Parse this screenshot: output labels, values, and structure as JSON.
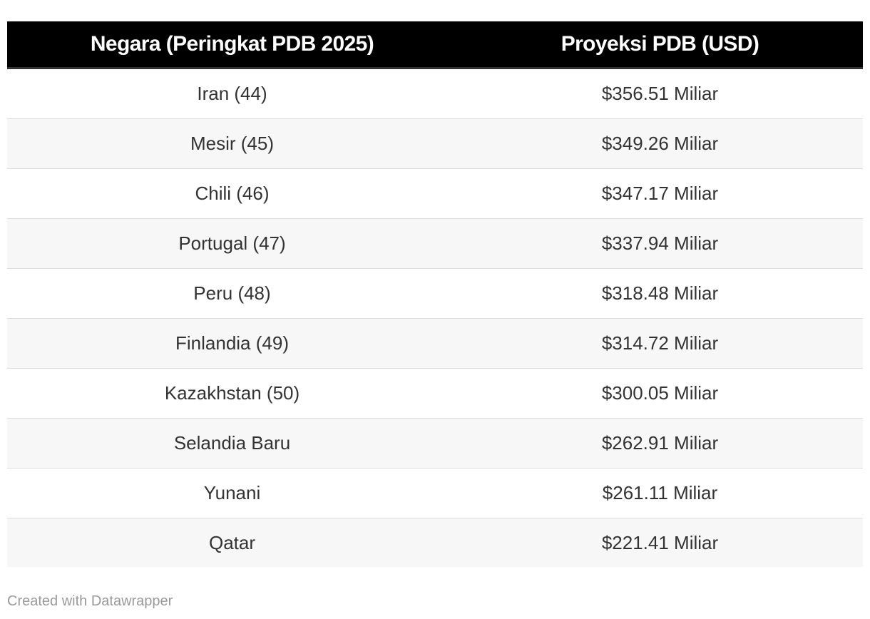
{
  "chart_data": {
    "type": "table",
    "columns": [
      "Negara (Peringkat PDB 2025)",
      "Proyeksi PDB (USD)"
    ],
    "rows": [
      [
        "Iran (44)",
        "$356.51 Miliar"
      ],
      [
        "Mesir (45)",
        "$349.26 Miliar"
      ],
      [
        "Chili (46)",
        "$347.17 Miliar"
      ],
      [
        "Portugal (47)",
        "$337.94 Miliar"
      ],
      [
        "Peru (48)",
        "$318.48 Miliar"
      ],
      [
        "Finlandia (49)",
        "$314.72 Miliar"
      ],
      [
        "Kazakhstan (50)",
        "$300.05 Miliar"
      ],
      [
        "Selandia Baru",
        "$262.91 Miliar"
      ],
      [
        "Yunani",
        "$261.11 Miliar"
      ],
      [
        "Qatar",
        "$221.41 Miliar"
      ]
    ],
    "colors": {
      "header_background": "#000000",
      "header_text": "#ffffff",
      "stripe": "#f7f7f7",
      "footer_text": "#999999"
    }
  },
  "footer": {
    "credit": "Created with Datawrapper"
  }
}
